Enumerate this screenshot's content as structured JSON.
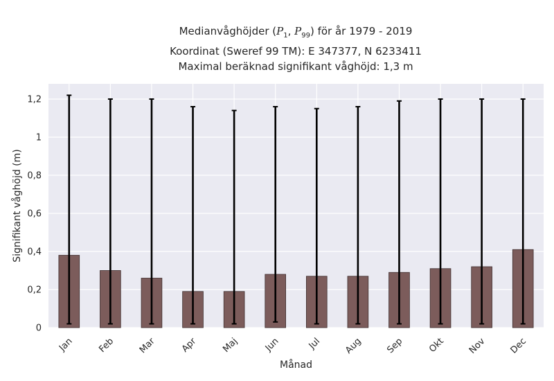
{
  "chart_data": {
    "type": "bar",
    "title_lines": [
      "Medianvåghöjder (P1, P99) för år 1979 - 2019",
      "Koordinat (Sweref 99 TM): E 347377, N 6233411",
      "Maximal beräknad signifikant våghöjd: 1,3 m"
    ],
    "title_parts": {
      "prefix": "Medianvåghöjder (",
      "p1_letter": "P",
      "p1_sub": "1",
      "sep": ", ",
      "p99_letter": "P",
      "p99_sub": "99",
      "suffix": ") för år 1979 - 2019"
    },
    "xlabel": "Månad",
    "ylabel": "Signifikant våghöjd (m)",
    "categories": [
      "Jan",
      "Feb",
      "Mar",
      "Apr",
      "Maj",
      "Jun",
      "Jul",
      "Aug",
      "Sep",
      "Okt",
      "Nov",
      "Dec"
    ],
    "series": [
      {
        "values": [
          0.38,
          0.3,
          0.26,
          0.19,
          0.19,
          0.28,
          0.27,
          0.27,
          0.29,
          0.31,
          0.32,
          0.41
        ],
        "error_low": [
          0.02,
          0.02,
          0.02,
          0.02,
          0.02,
          0.03,
          0.02,
          0.02,
          0.02,
          0.02,
          0.02,
          0.02
        ],
        "error_high": [
          1.22,
          1.2,
          1.2,
          1.16,
          1.14,
          1.16,
          1.15,
          1.16,
          1.19,
          1.2,
          1.2,
          1.2
        ]
      }
    ],
    "ylim": [
      0,
      1.28
    ],
    "yticks": [
      0,
      0.2,
      0.4,
      0.6,
      0.8,
      1,
      1.2
    ],
    "ytick_labels": [
      "0",
      "0,2",
      "0,4",
      "0,6",
      "0,8",
      "1",
      "1,2"
    ],
    "grid": true,
    "colors": {
      "bar": "#7c5c5b",
      "bar_edge": "#3f2f2f",
      "plot_bg": "#eaeaf2",
      "grid": "#ffffff",
      "error_bar": "#000000"
    }
  }
}
